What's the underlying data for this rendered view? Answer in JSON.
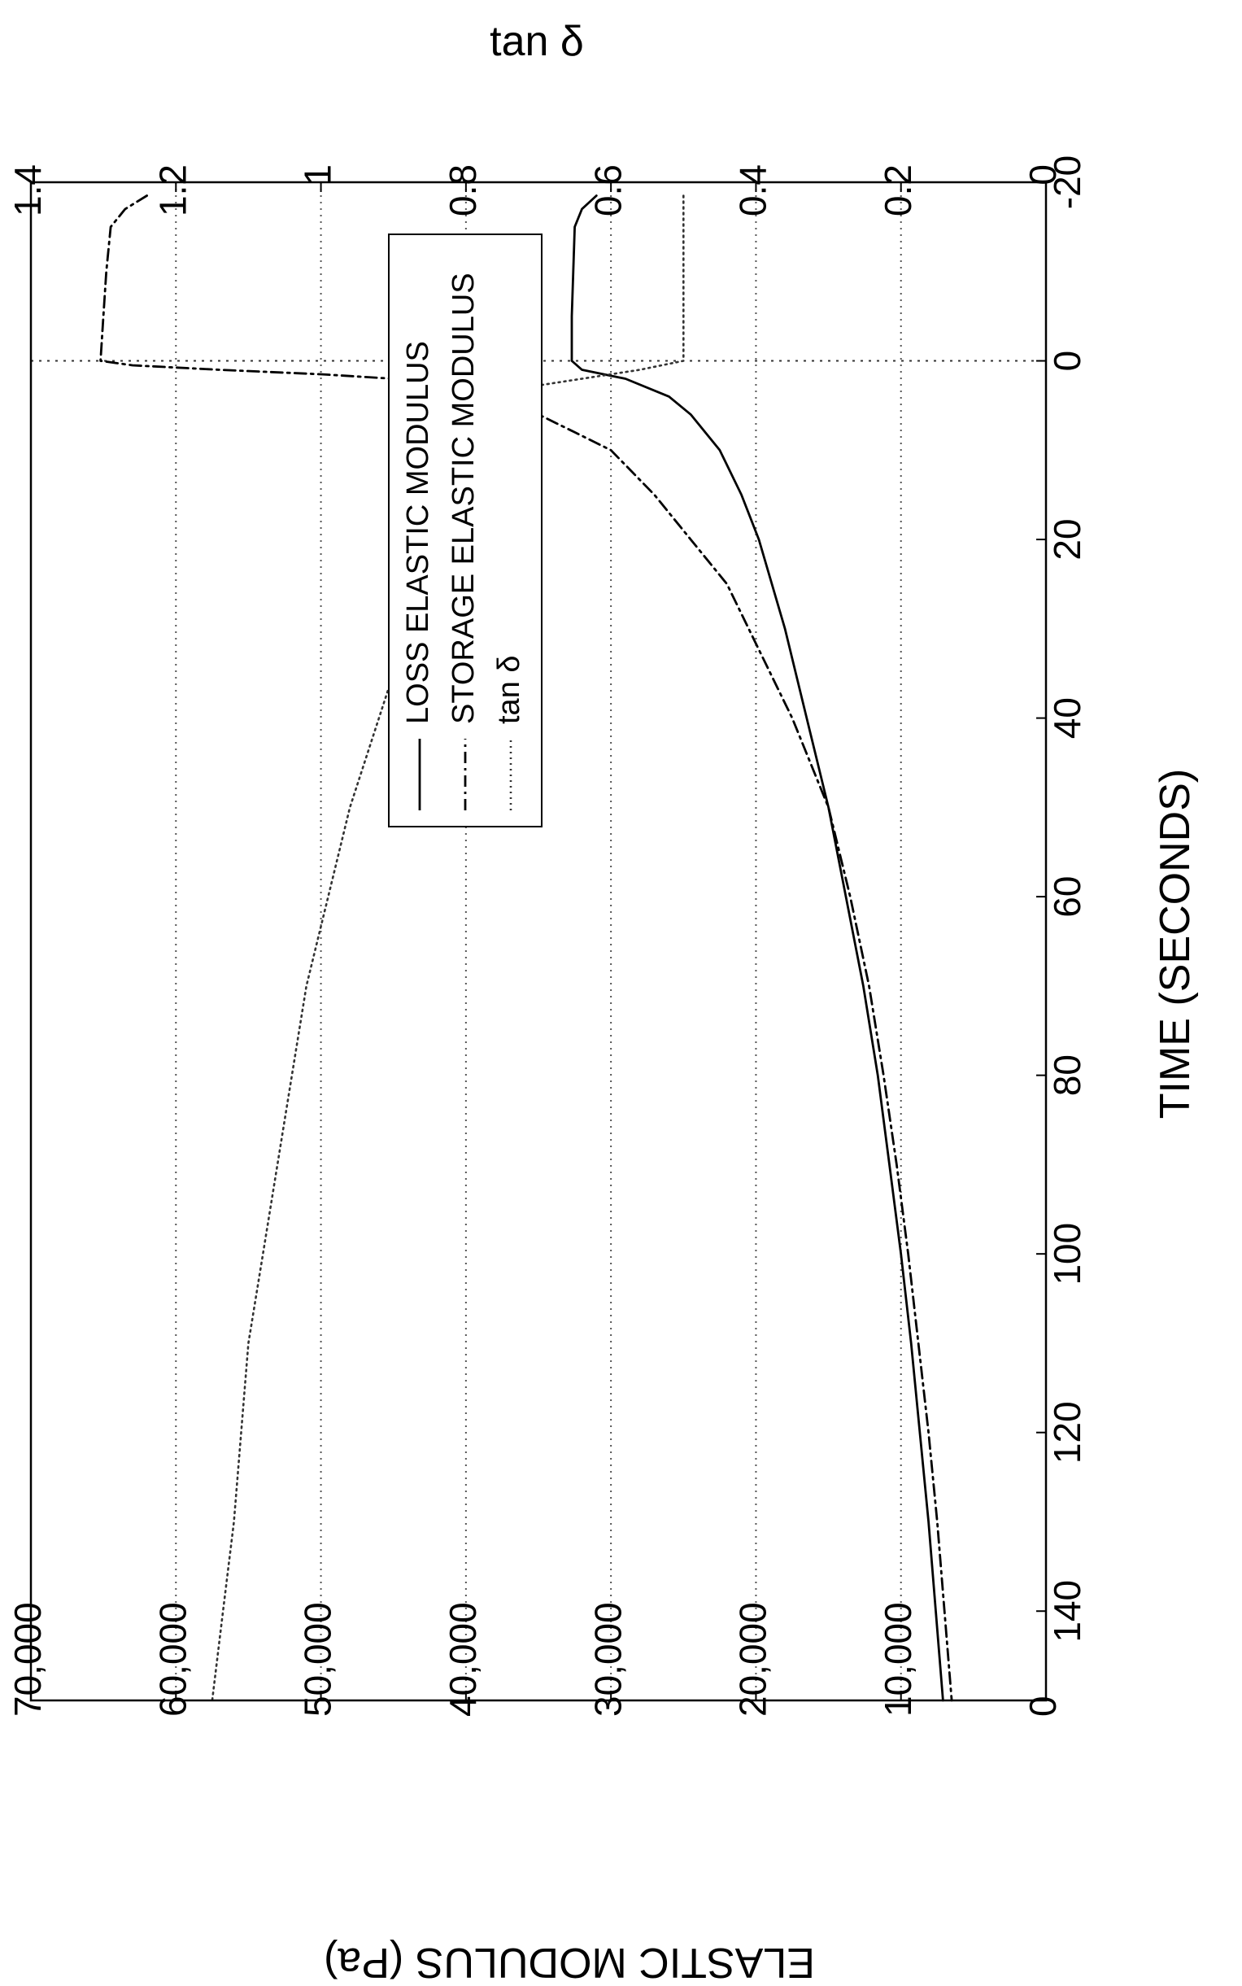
{
  "chart_data": {
    "type": "line",
    "xlabel": "TIME (SECONDS)",
    "ylabel": "ELASTIC MODULUS (Pa)",
    "y2label": "tan δ",
    "xlim": [
      -20,
      150
    ],
    "ylim": [
      0,
      70000
    ],
    "y2lim": [
      0,
      1.4
    ],
    "xticks": [
      -20,
      0,
      20,
      40,
      60,
      80,
      100,
      120,
      140
    ],
    "yticks": [
      "0",
      "10,000",
      "20,000",
      "30,000",
      "40,000",
      "50,000",
      "60,000",
      "70,000"
    ],
    "y2ticks": [
      "0",
      "0.2",
      "0.4",
      "0.6",
      "0.8",
      "1",
      "1.2",
      "1.4"
    ],
    "grid": "horizontal dotted",
    "orientation": "rotated 90° clockwise",
    "legend": {
      "placement": "top-right",
      "entries": [
        "LOSS ELASTIC MODULUS",
        "STORAGE ELASTIC MODULUS",
        "tan δ"
      ]
    },
    "series": [
      {
        "name": "LOSS ELASTIC MODULUS",
        "axis": "left",
        "style": "solid",
        "x": [
          -18.5,
          -17,
          -15,
          -10,
          -5,
          0,
          1,
          2,
          4,
          6,
          10,
          15,
          20,
          30,
          40,
          50,
          60,
          70,
          80,
          90,
          100,
          110,
          120,
          130,
          140,
          150
        ],
        "y": [
          31000,
          32000,
          32500,
          32600,
          32700,
          32700,
          32000,
          29000,
          26000,
          24500,
          22500,
          21000,
          19800,
          18000,
          16500,
          15000,
          13800,
          12600,
          11600,
          10800,
          10000,
          9300,
          8700,
          8100,
          7600,
          7100
        ]
      },
      {
        "name": "STORAGE ELASTIC MODULUS",
        "axis": "left",
        "style": "dash-dot",
        "x": [
          -18.5,
          -17,
          -15,
          -10,
          -5,
          0,
          0.5,
          1,
          1.5,
          2,
          3,
          4,
          6,
          8,
          10,
          15,
          20,
          25,
          30,
          40,
          50,
          60,
          70,
          80,
          90,
          100,
          110,
          120,
          130,
          140,
          150
        ],
        "y": [
          62000,
          63500,
          64500,
          64800,
          65000,
          65200,
          63000,
          57000,
          50000,
          45000,
          40000,
          37500,
          35000,
          32500,
          30000,
          27000,
          24500,
          22000,
          20500,
          17500,
          15000,
          13500,
          12200,
          11200,
          10300,
          9500,
          8800,
          8100,
          7500,
          7000,
          6500
        ]
      },
      {
        "name": "tan δ",
        "axis": "right",
        "style": "dotted",
        "x": [
          -18.5,
          -15,
          -10,
          -5,
          0,
          1,
          2,
          3,
          4,
          5,
          6,
          10,
          15,
          20,
          30,
          40,
          50,
          60,
          70,
          80,
          90,
          100,
          110,
          120,
          130,
          140,
          150
        ],
        "y": [
          0.5,
          0.5,
          0.5,
          0.5,
          0.5,
          0.56,
          0.64,
          0.72,
          0.76,
          0.77,
          0.78,
          0.8,
          0.82,
          0.84,
          0.88,
          0.92,
          0.96,
          0.99,
          1.02,
          1.04,
          1.06,
          1.08,
          1.1,
          1.11,
          1.12,
          1.135,
          1.15
        ]
      }
    ]
  }
}
